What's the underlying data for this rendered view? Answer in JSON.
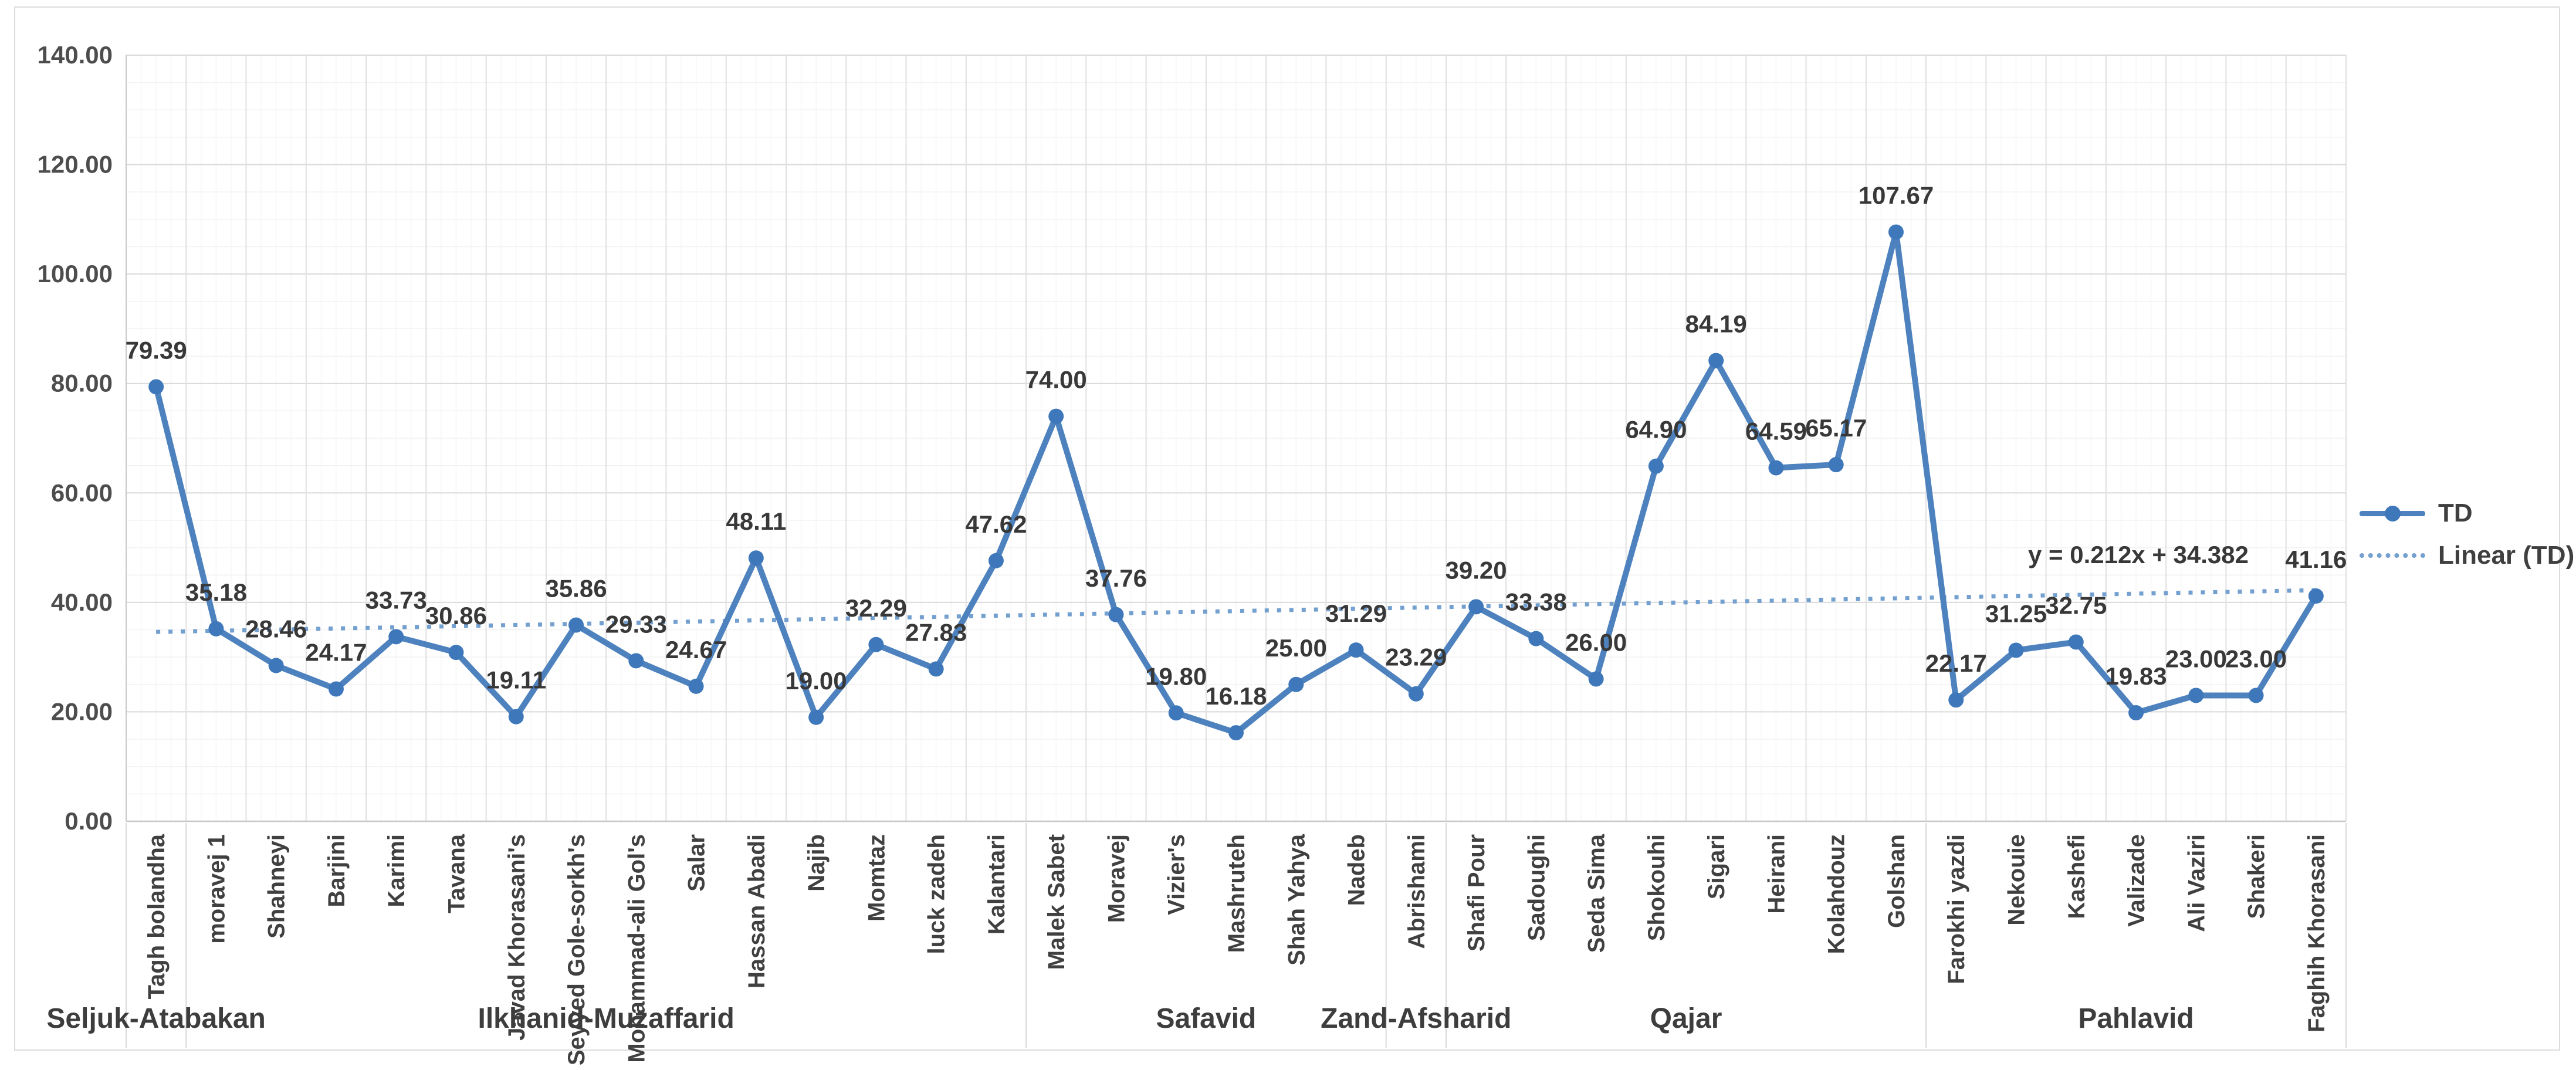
{
  "chart_data": {
    "type": "line",
    "title": "",
    "categories": [
      "Tagh bolandha",
      "moravej 1",
      "Shahneyi",
      "Barjini",
      "Karimi",
      "Tavana",
      "Javad Khorasani's",
      "Seyyed Gole-sorkh's",
      "Mohammad-ali Gol's",
      "Salar",
      "Hassan Abadi",
      "Najib",
      "Momtaz",
      "luck zadeh",
      "Kalantari",
      "Malek Sabet",
      "Moravej",
      "Vizier's",
      "Mashruteh",
      "Shah Yahya",
      "Nadeb",
      "Abrishami",
      "Shafi Pour",
      "Sadoughi",
      "Seda Sima",
      "Shokouhi",
      "Sigari",
      "Heirani",
      "Kolahdouz",
      "Golshan",
      "Farokhi yazdi",
      "Nekouie",
      "Kashefi",
      "Valizade",
      "Ali Vaziri",
      "Shakeri",
      "Faghih Khorasani"
    ],
    "series": [
      {
        "name": "TD",
        "values": [
          79.39,
          35.18,
          28.46,
          24.17,
          33.73,
          30.86,
          19.11,
          35.86,
          29.33,
          24.67,
          48.11,
          19.0,
          32.29,
          27.83,
          47.62,
          74.0,
          37.76,
          19.8,
          16.18,
          25.0,
          31.29,
          23.29,
          39.2,
          33.38,
          26.0,
          64.9,
          84.19,
          64.59,
          65.17,
          107.67,
          22.17,
          31.25,
          32.75,
          19.83,
          23.0,
          23.0,
          41.16
        ]
      }
    ],
    "category_groups": [
      {
        "label": "Seljuk-Atabakan",
        "start": 0,
        "end": 0
      },
      {
        "label": "Ilkhanid-Muzaffarid",
        "start": 1,
        "end": 14
      },
      {
        "label": "Safavid",
        "start": 15,
        "end": 20
      },
      {
        "label": "Zand-Afsharid",
        "start": 21,
        "end": 21
      },
      {
        "label": "Qajar",
        "start": 22,
        "end": 29
      },
      {
        "label": "Pahlavid",
        "start": 30,
        "end": 36
      }
    ],
    "trendline": {
      "name": "Linear (TD)",
      "equation": "y = 0.212x + 34.382",
      "slope": 0.212,
      "intercept": 34.382
    },
    "y_axis": {
      "min": 0,
      "max": 140,
      "major_step": 20,
      "minor_step": 5,
      "tick_labels": [
        "0.00",
        "20.00",
        "40.00",
        "60.00",
        "80.00",
        "100.00",
        "120.00",
        "140.00"
      ]
    },
    "legend": {
      "position": "right",
      "entries": [
        {
          "label": "TD"
        },
        {
          "label": "Linear (TD)"
        }
      ]
    },
    "grid": true,
    "colors": {
      "series": "#4e82be",
      "marker": "#3e78ba",
      "trend": "#74a0d0",
      "grid_major": "#dadada",
      "grid_minor": "#f2f2f2",
      "axis_line": "#c8c8c8",
      "separator": "#d9d9d9",
      "data_label": "#383838",
      "axis_text": "#4d4d4d",
      "group_text": "#3d3d3d",
      "frame": "#dcdcdc"
    }
  }
}
